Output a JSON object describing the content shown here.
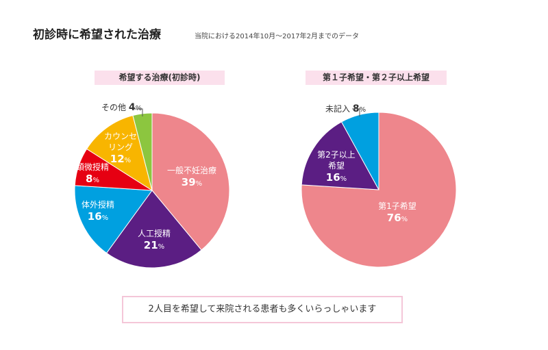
{
  "title": "初診時に希望された治療",
  "subtitle": "当院における2014年10月～2017年2月までのデータ",
  "footer": "2人目を希望して来院される患者も多くいらっしゃいます",
  "chart_data": [
    {
      "type": "pie",
      "title": "希望する治療(初診時)",
      "slices": [
        {
          "name": "一般不妊治療",
          "value": 39,
          "color": "#ee868c",
          "label_lines": [
            "一般不妊治療"
          ],
          "value_text": "39",
          "unit": "%",
          "label_color": "#ffffff"
        },
        {
          "name": "人工授精",
          "value": 21,
          "color": "#5b1e83",
          "label_lines": [
            "人工授精"
          ],
          "value_text": "21",
          "unit": "%",
          "label_color": "#ffffff"
        },
        {
          "name": "体外授精",
          "value": 16,
          "color": "#00a0e0",
          "label_lines": [
            "体外授精"
          ],
          "value_text": "16",
          "unit": "%",
          "label_color": "#ffffff"
        },
        {
          "name": "顕微授精",
          "value": 8,
          "color": "#e60012",
          "label_lines": [
            "顕微授精"
          ],
          "value_text": "8",
          "unit": "%",
          "label_color": "#ffffff"
        },
        {
          "name": "カウンセリング",
          "value": 12,
          "color": "#f8b500",
          "label_lines": [
            "カウンセ",
            "リング"
          ],
          "value_text": "12",
          "unit": "%",
          "label_color": "#ffffff"
        },
        {
          "name": "その他",
          "value": 4,
          "color": "#8cc63f",
          "label_lines": [
            "その他"
          ],
          "value_text": "4",
          "unit": "%",
          "label_color": "#333333",
          "external": true
        }
      ]
    },
    {
      "type": "pie",
      "title": "第１子希望・第２子以上希望",
      "slices": [
        {
          "name": "第1子希望",
          "value": 76,
          "color": "#ee868c",
          "label_lines": [
            "第1子希望"
          ],
          "value_text": "76",
          "unit": "%",
          "label_color": "#ffffff"
        },
        {
          "name": "第2子以上希望",
          "value": 16,
          "color": "#5b1e83",
          "label_lines": [
            "第2子以上",
            "希望"
          ],
          "value_text": "16",
          "unit": "%",
          "label_color": "#ffffff"
        },
        {
          "name": "未記入",
          "value": 8,
          "color": "#00a0e0",
          "label_lines": [
            "未記入"
          ],
          "value_text": "8",
          "unit": "%",
          "label_color": "#333333",
          "external": true
        }
      ]
    }
  ]
}
